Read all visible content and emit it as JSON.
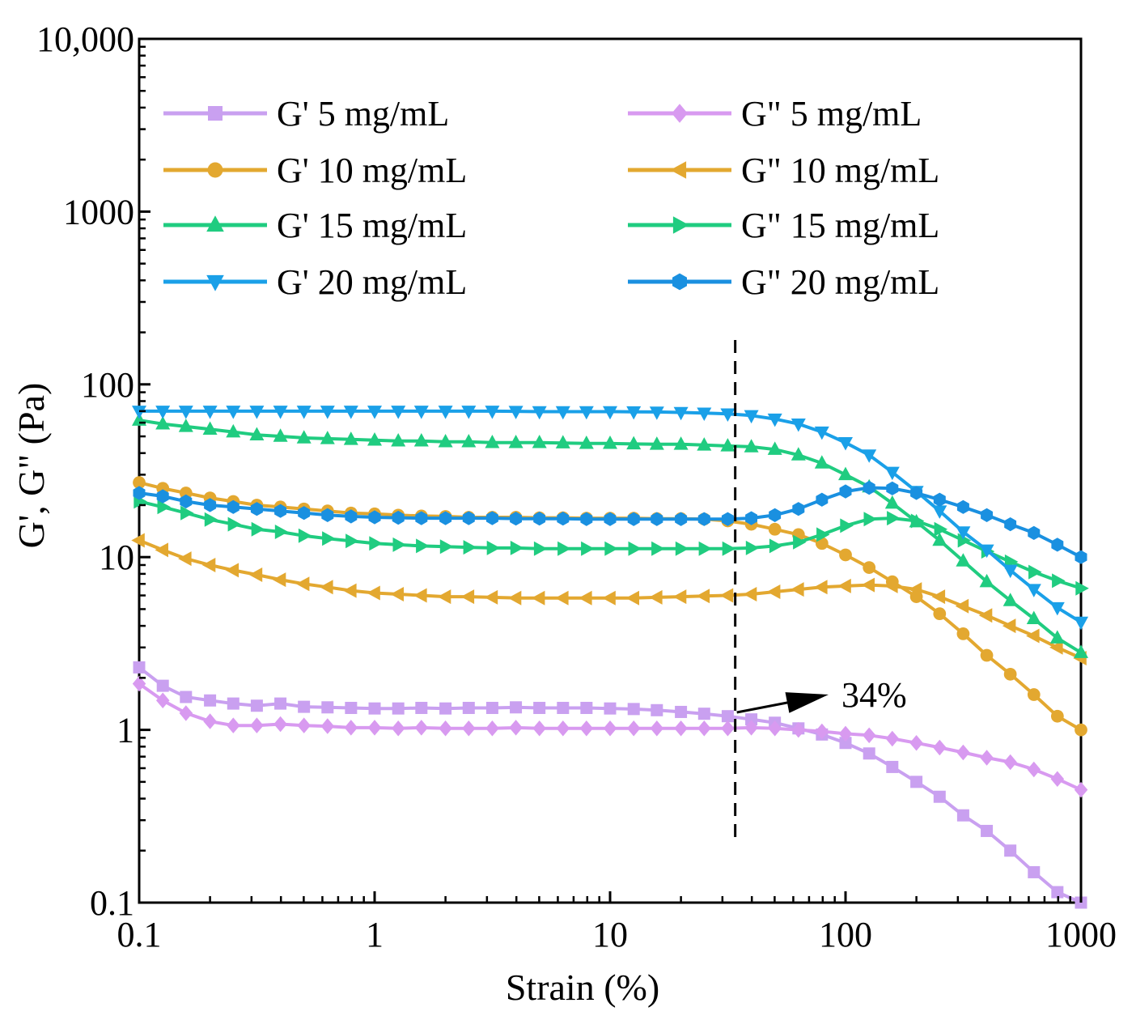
{
  "chart_data": {
    "type": "line",
    "title": "",
    "xlabel": "Strain (%)",
    "ylabel": "G', G\" (Pa)",
    "xscale": "log",
    "yscale": "log",
    "xlim": [
      0.1,
      1000
    ],
    "ylim": [
      0.1,
      10000
    ],
    "x_ticks": [
      0.1,
      1,
      10,
      100,
      1000
    ],
    "x_tick_labels": [
      "0.1",
      "1",
      "10",
      "100",
      "1000"
    ],
    "y_ticks": [
      0.1,
      1,
      10,
      100,
      1000,
      10000
    ],
    "y_tick_labels": [
      "0.1",
      "1",
      "10",
      "100",
      "1000",
      "10,000"
    ],
    "grid": false,
    "legend_position": "top",
    "annotation": {
      "text": "34%",
      "x": 34
    },
    "x": [
      0.1,
      0.126,
      0.158,
      0.2,
      0.251,
      0.316,
      0.398,
      0.501,
      0.631,
      0.794,
      1,
      1.26,
      1.58,
      2,
      2.51,
      3.16,
      3.98,
      5.01,
      6.31,
      7.94,
      10,
      12.6,
      15.8,
      20,
      25.1,
      31.6,
      39.8,
      50.1,
      63.1,
      79.4,
      100,
      126,
      158,
      200,
      251,
      316,
      398,
      501,
      631,
      794,
      1000
    ],
    "series": [
      {
        "name": "G' 5 mg/mL",
        "color": "#c9a0f0",
        "marker": "square",
        "values": [
          2.3,
          1.8,
          1.55,
          1.48,
          1.42,
          1.38,
          1.42,
          1.36,
          1.35,
          1.34,
          1.33,
          1.33,
          1.34,
          1.33,
          1.34,
          1.34,
          1.35,
          1.34,
          1.34,
          1.34,
          1.33,
          1.32,
          1.3,
          1.27,
          1.24,
          1.2,
          1.15,
          1.1,
          1.02,
          0.94,
          0.84,
          0.73,
          0.61,
          0.5,
          0.41,
          0.32,
          0.26,
          0.2,
          0.15,
          0.115,
          0.1
        ]
      },
      {
        "name": "G\" 5 mg/mL",
        "color": "#d89af0",
        "marker": "diamond",
        "values": [
          1.85,
          1.48,
          1.25,
          1.12,
          1.06,
          1.06,
          1.08,
          1.06,
          1.05,
          1.03,
          1.03,
          1.02,
          1.03,
          1.02,
          1.02,
          1.02,
          1.03,
          1.02,
          1.02,
          1.02,
          1.02,
          1.02,
          1.02,
          1.02,
          1.02,
          1.02,
          1.03,
          1.02,
          1.0,
          0.98,
          0.95,
          0.93,
          0.89,
          0.84,
          0.79,
          0.74,
          0.69,
          0.65,
          0.59,
          0.52,
          0.45
        ]
      },
      {
        "name": "G' 10 mg/mL",
        "color": "#e3a830",
        "marker": "circle",
        "values": [
          27,
          25,
          23.5,
          22,
          21,
          20,
          19.5,
          19,
          18.5,
          18,
          17.8,
          17.5,
          17.3,
          17.2,
          17,
          17,
          17,
          16.9,
          16.9,
          16.8,
          16.8,
          16.8,
          16.7,
          16.7,
          16.6,
          16.2,
          15.5,
          14.5,
          13.5,
          12,
          10.3,
          8.7,
          7.2,
          5.9,
          4.7,
          3.6,
          2.7,
          2.1,
          1.6,
          1.2,
          1.0
        ]
      },
      {
        "name": "G\" 10 mg/mL",
        "color": "#e3a830",
        "marker": "triangle-left",
        "values": [
          12.5,
          11,
          9.8,
          9.0,
          8.4,
          7.9,
          7.4,
          7.0,
          6.7,
          6.4,
          6.2,
          6.1,
          6.0,
          5.9,
          5.9,
          5.85,
          5.8,
          5.8,
          5.8,
          5.8,
          5.8,
          5.8,
          5.85,
          5.9,
          5.95,
          6.0,
          6.1,
          6.3,
          6.5,
          6.7,
          6.8,
          6.9,
          6.8,
          6.5,
          5.9,
          5.2,
          4.6,
          4.0,
          3.5,
          3.0,
          2.6
        ]
      },
      {
        "name": "G' 15 mg/mL",
        "color": "#20cc80",
        "marker": "triangle-up",
        "values": [
          62,
          59,
          57,
          55,
          53,
          51,
          50,
          49,
          48.5,
          48,
          47.5,
          47,
          47,
          46.5,
          46.5,
          46,
          46,
          46,
          45.8,
          45.5,
          45.5,
          45.2,
          45,
          45,
          44.5,
          44,
          43.5,
          42,
          39,
          35,
          30,
          25.5,
          20.5,
          16,
          12.5,
          9.5,
          7.2,
          5.6,
          4.4,
          3.4,
          2.8
        ]
      },
      {
        "name": "G\" 15 mg/mL",
        "color": "#20cc80",
        "marker": "triangle-right",
        "values": [
          21,
          19.5,
          18,
          16.5,
          15.5,
          14.5,
          14,
          13.3,
          12.8,
          12.4,
          12,
          11.8,
          11.6,
          11.5,
          11.4,
          11.3,
          11.3,
          11.2,
          11.2,
          11.2,
          11.2,
          11.2,
          11.2,
          11.2,
          11.2,
          11.2,
          11.3,
          11.6,
          12.2,
          13.5,
          15.2,
          16.6,
          16.8,
          16.2,
          14.5,
          12.5,
          10.8,
          9.4,
          8.2,
          7.3,
          6.6
        ]
      },
      {
        "name": "G' 20 mg/mL",
        "color": "#1aa0e8",
        "marker": "triangle-down",
        "values": [
          70,
          70,
          70,
          70,
          70,
          70,
          70,
          70,
          70,
          70,
          70,
          70,
          70,
          70,
          70,
          70,
          69.8,
          69.5,
          69.5,
          69.5,
          69.5,
          69.4,
          69.2,
          68.8,
          68.2,
          67.5,
          66,
          63,
          59,
          53,
          46,
          39,
          31,
          24,
          18.5,
          14,
          11,
          8.4,
          6.5,
          5.1,
          4.2
        ]
      },
      {
        "name": "G\" 20 mg/mL",
        "color": "#1a90e0",
        "marker": "hexagon",
        "values": [
          23.5,
          22.5,
          21,
          20,
          19.5,
          19,
          18.5,
          18,
          17.5,
          17.2,
          17,
          16.9,
          16.8,
          16.8,
          16.8,
          16.8,
          16.7,
          16.7,
          16.7,
          16.6,
          16.6,
          16.6,
          16.6,
          16.6,
          16.6,
          16.6,
          16.8,
          17.5,
          19,
          21.5,
          24,
          25.2,
          25,
          23.5,
          21.5,
          19.5,
          17.5,
          15.5,
          13.8,
          11.8,
          10
        ]
      }
    ]
  }
}
